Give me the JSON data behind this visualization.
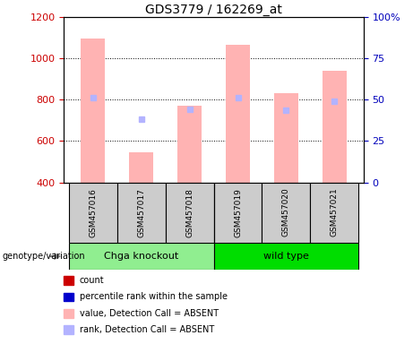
{
  "title": "GDS3779 / 162269_at",
  "samples": [
    "GSM457016",
    "GSM457017",
    "GSM457018",
    "GSM457019",
    "GSM457020",
    "GSM457021"
  ],
  "ylim_left": [
    400,
    1200
  ],
  "ylim_right": [
    0,
    100
  ],
  "yticks_left": [
    400,
    600,
    800,
    1000,
    1200
  ],
  "yticks_right": [
    0,
    25,
    50,
    75,
    100
  ],
  "yticklabels_right": [
    "0",
    "25",
    "50",
    "75",
    "100%"
  ],
  "baseline": 400,
  "pink_bar_tops": [
    1095,
    545,
    770,
    1065,
    833,
    940
  ],
  "blue_dot_values": [
    812,
    705,
    755,
    812,
    748,
    795
  ],
  "groups": [
    {
      "label": "Chga knockout",
      "color": "#90ee90"
    },
    {
      "label": "wild type",
      "color": "#00dd00"
    }
  ],
  "group_label": "genotype/variation",
  "legend_items": [
    {
      "label": "count",
      "color": "#cc0000"
    },
    {
      "label": "percentile rank within the sample",
      "color": "#0000cc"
    },
    {
      "label": "value, Detection Call = ABSENT",
      "color": "#ffb3b3"
    },
    {
      "label": "rank, Detection Call = ABSENT",
      "color": "#b3b3ff"
    }
  ],
  "pink_bar_color": "#ffb3b3",
  "blue_dot_color": "#b3b3ff",
  "left_axis_color": "#cc0000",
  "right_axis_color": "#0000bb",
  "sample_box_color": "#cccccc",
  "bar_width": 0.5
}
